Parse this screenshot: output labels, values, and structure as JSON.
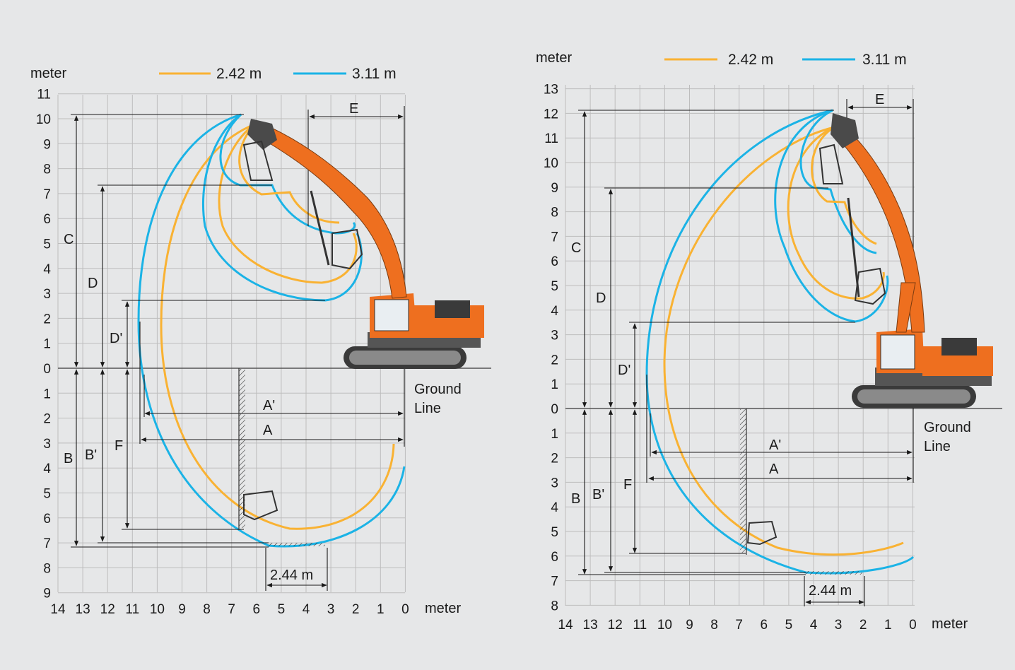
{
  "unit_label": "meter",
  "legend": [
    {
      "label": "2.42 m",
      "color": "#f9b233"
    },
    {
      "label": "3.11 m",
      "color": "#1bb3e6"
    }
  ],
  "ground_line_label": [
    "Ground",
    "Line"
  ],
  "bucket_width_label": "2.44 m",
  "colors": {
    "background": "#e6e7e8",
    "grid": "#bdbdbd",
    "excavator_body": "#ee6f1f",
    "excavator_dark": "#3a3a3a",
    "dimension_line": "#1a1a1a"
  },
  "diagrams": [
    {
      "id": "left",
      "x_ticks": [
        "14",
        "13",
        "12",
        "11",
        "10",
        "9",
        "8",
        "7",
        "6",
        "5",
        "4",
        "3",
        "2",
        "1",
        "0"
      ],
      "y_up_ticks": [
        "0",
        "1",
        "2",
        "3",
        "4",
        "5",
        "6",
        "7",
        "8",
        "9",
        "10",
        "11"
      ],
      "y_down_ticks": [
        "1",
        "2",
        "3",
        "4",
        "5",
        "6",
        "7",
        "8",
        "9"
      ],
      "dimension_labels": [
        "A",
        "A'",
        "B",
        "B'",
        "C",
        "D",
        "D'",
        "E",
        "F"
      ]
    },
    {
      "id": "right",
      "x_ticks": [
        "14",
        "13",
        "12",
        "11",
        "10",
        "9",
        "8",
        "7",
        "6",
        "5",
        "4",
        "3",
        "2",
        "1",
        "0"
      ],
      "y_up_ticks": [
        "0",
        "1",
        "2",
        "3",
        "4",
        "5",
        "6",
        "7",
        "8",
        "9",
        "10",
        "11",
        "12",
        "13"
      ],
      "y_down_ticks": [
        "1",
        "2",
        "3",
        "4",
        "5",
        "6",
        "7",
        "8"
      ],
      "dimension_labels": [
        "A",
        "A'",
        "B",
        "B'",
        "C",
        "D",
        "D'",
        "E",
        "F"
      ]
    }
  ]
}
